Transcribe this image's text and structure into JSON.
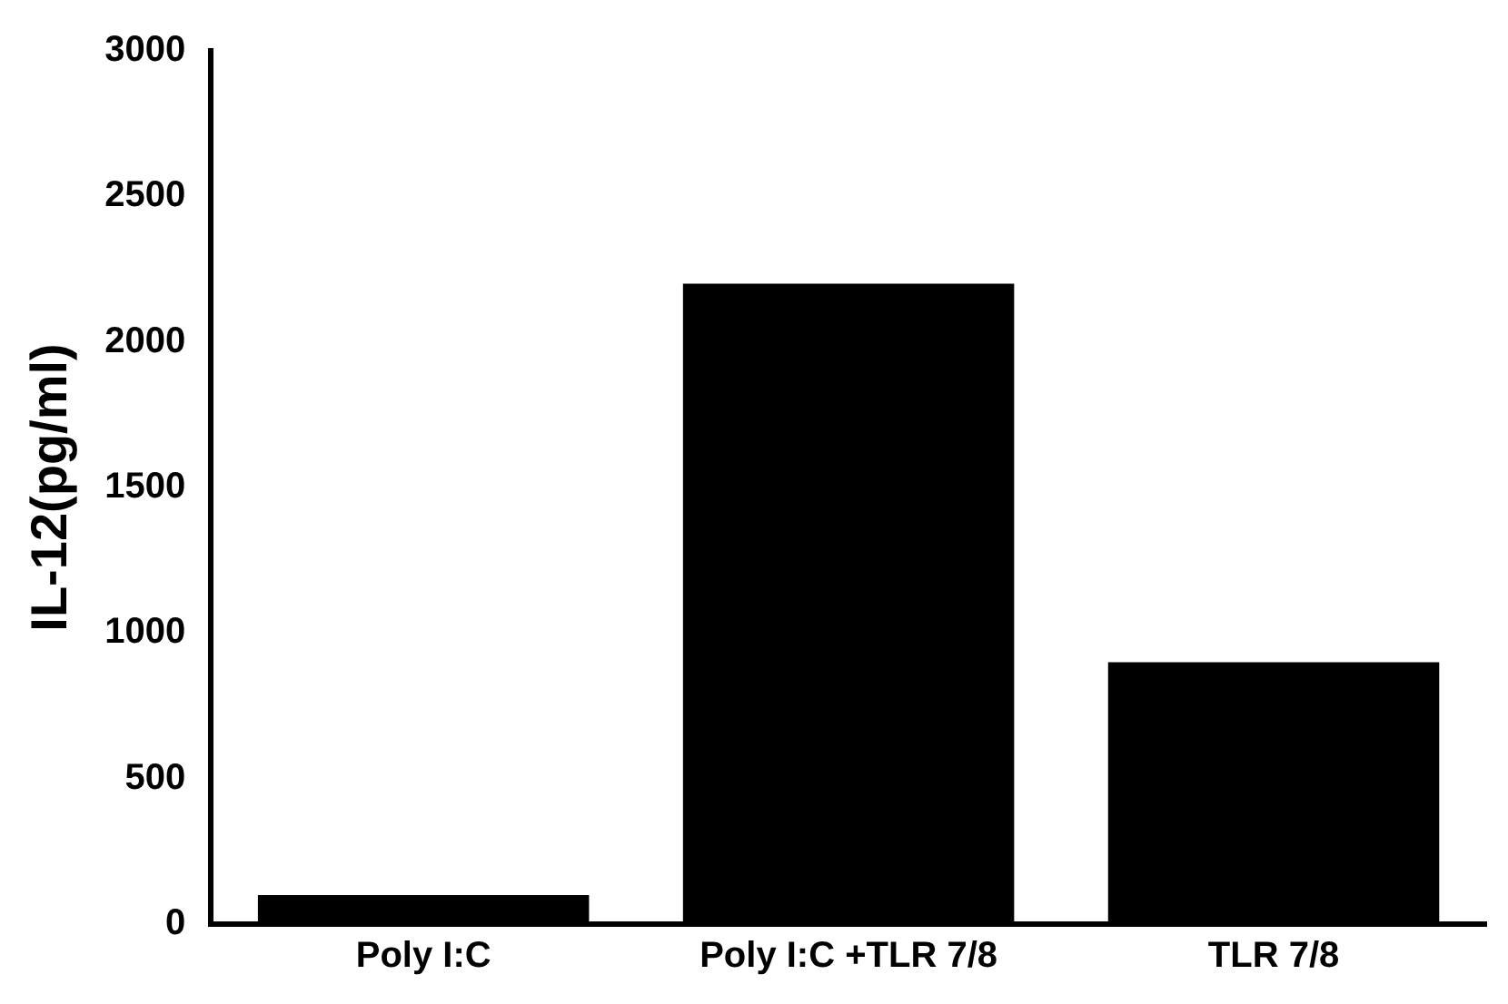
{
  "chart_data": {
    "type": "bar",
    "ylabel": "IL-12(pg/ml)",
    "categories": [
      "Poly I:C",
      "Poly I:C +TLR 7/8",
      "TLR 7/8"
    ],
    "values": [
      100,
      2200,
      900
    ],
    "color": "#000000",
    "ylim": [
      0,
      3000
    ],
    "yticks": [
      0,
      500,
      1000,
      1500,
      2000,
      2500,
      3000
    ],
    "grid": false,
    "legend": false
  }
}
